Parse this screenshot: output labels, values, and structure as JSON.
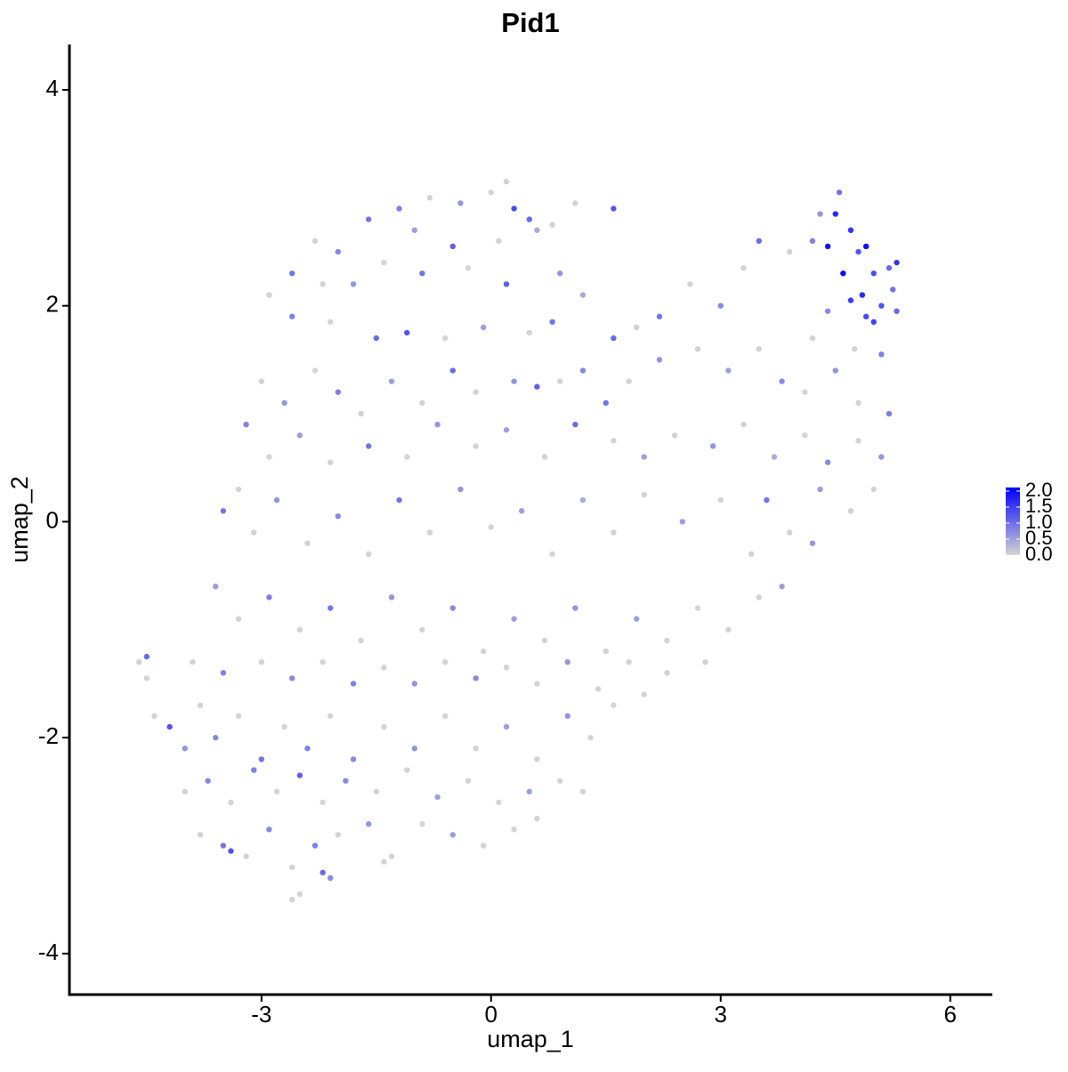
{
  "chart_data": {
    "type": "scatter",
    "title": "Pid1",
    "x_label": "umap_1",
    "y_label": "umap_2",
    "xlim": [
      -5.51,
      6.55
    ],
    "ylim": [
      -4.38,
      4.42
    ],
    "xticks": [
      -3,
      0,
      3,
      6
    ],
    "yticks": [
      -4,
      -2,
      0,
      2,
      4
    ],
    "low_color": "#d3d3d3",
    "high_color": "#0000ff",
    "color_lim": [
      0,
      2.0
    ],
    "color_ticks": [
      {
        "value": 0,
        "label": "0.0"
      },
      {
        "value": 0.5,
        "label": "0.5"
      },
      {
        "value": 1.0,
        "label": "1.0"
      },
      {
        "value": 1.5,
        "label": "1.5"
      },
      {
        "value": 2.0,
        "label": "2.0"
      }
    ],
    "x": [
      -1.2,
      -0.8,
      -0.4,
      0,
      0.2,
      0.3,
      0.5,
      0.8,
      1.1,
      1.6,
      -1.6,
      -2.0,
      -2.3,
      -1.0,
      -0.5,
      0.1,
      0.6,
      -2.6,
      -2.2,
      -1.8,
      -1.4,
      -0.9,
      -0.3,
      0.2,
      0.9,
      1.2,
      -2.9,
      -2.6,
      -2.1,
      -1.5,
      -1.1,
      -0.6,
      -0.1,
      0.5,
      0.8,
      1.6,
      1.9,
      2.2,
      2.6,
      3.0,
      3.3,
      3.5,
      3.9,
      4.2,
      4.4,
      4.5,
      4.55,
      4.7,
      4.8,
      4.9,
      5.0,
      5.2,
      5.3,
      4.6,
      4.7,
      4.85,
      5.0,
      5.1,
      5.25,
      4.9,
      4.4,
      4.2,
      5.3,
      4.75,
      5.1,
      4.3,
      -3.0,
      -2.7,
      -2.3,
      -2.0,
      -1.7,
      -1.3,
      -0.9,
      -0.5,
      -0.2,
      0.3,
      0.6,
      0.9,
      1.2,
      1.5,
      1.8,
      2.2,
      2.7,
      3.1,
      3.5,
      3.8,
      4.1,
      4.5,
      4.8,
      5.2,
      -3.2,
      -2.9,
      -2.5,
      -2.1,
      -1.6,
      -1.1,
      -0.7,
      -0.2,
      0.2,
      0.7,
      1.1,
      1.6,
      2.0,
      2.4,
      2.9,
      3.3,
      3.7,
      4.1,
      4.4,
      4.8,
      5.1,
      -3.3,
      -3.5,
      -3.1,
      -2.8,
      -2.4,
      -2.0,
      -1.6,
      -1.2,
      -0.8,
      -0.4,
      0.0,
      0.4,
      0.8,
      1.2,
      1.6,
      2.0,
      2.5,
      3.0,
      3.6,
      3.9,
      4.3,
      4.7,
      5.0,
      3.4,
      4.2,
      -3.6,
      -3.3,
      -2.9,
      -2.5,
      -2.1,
      -1.7,
      -1.3,
      -0.9,
      -0.5,
      -0.1,
      0.3,
      0.7,
      1.1,
      1.5,
      1.9,
      2.3,
      2.7,
      3.1,
      3.5,
      3.8,
      -3.9,
      -3.5,
      -3.0,
      -2.6,
      -2.2,
      -1.8,
      -1.4,
      -1.0,
      -0.6,
      -0.2,
      0.2,
      0.6,
      1.0,
      1.4,
      1.8,
      2.3,
      2.8,
      -4.6,
      -4.5,
      -4.5,
      -4.4,
      -4.2,
      -4.0,
      -3.8,
      -3.6,
      -3.3,
      -3.0,
      -2.7,
      -2.4,
      -2.1,
      -1.8,
      -1.4,
      -1.0,
      -0.6,
      -0.2,
      0.2,
      0.6,
      1.0,
      1.3,
      1.6,
      2.0,
      -4.0,
      -3.7,
      -3.4,
      -3.1,
      -2.8,
      -2.5,
      -2.2,
      -1.9,
      -1.5,
      -1.1,
      -0.7,
      -0.3,
      0.1,
      0.5,
      0.9,
      1.2,
      -3.8,
      -3.5,
      -3.2,
      -2.9,
      -2.6,
      -2.3,
      -2.0,
      -1.6,
      -1.3,
      -0.9,
      -0.5,
      -0.1,
      0.3,
      0.6,
      -2.6,
      -2.5,
      -2.2,
      -2.1,
      -1.4,
      -3.4
    ],
    "values": [
      2.9,
      3.0,
      2.95,
      3.05,
      3.15,
      2.9,
      2.8,
      2.75,
      2.95,
      2.9,
      2.8,
      2.5,
      2.6,
      2.7,
      2.55,
      2.6,
      2.7,
      2.3,
      2.2,
      2.2,
      2.4,
      2.3,
      2.35,
      2.2,
      2.3,
      2.1,
      2.1,
      1.9,
      1.85,
      1.7,
      1.75,
      1.7,
      1.8,
      1.75,
      1.85,
      1.7,
      1.8,
      1.9,
      2.2,
      2.0,
      2.35,
      2.6,
      2.5,
      2.6,
      2.55,
      2.85,
      3.05,
      2.7,
      2.5,
      2.55,
      2.3,
      2.35,
      2.4,
      2.3,
      2.05,
      2.1,
      1.85,
      2.0,
      2.15,
      1.9,
      1.95,
      1.7,
      1.95,
      1.6,
      1.55,
      2.85,
      1.3,
      1.1,
      1.4,
      1.2,
      1.0,
      1.3,
      1.1,
      1.4,
      1.2,
      1.3,
      1.25,
      1.3,
      1.4,
      1.1,
      1.3,
      1.5,
      1.6,
      1.4,
      1.6,
      1.3,
      1.2,
      1.4,
      1.1,
      1.0,
      0.9,
      0.6,
      0.8,
      0.55,
      0.7,
      0.6,
      0.9,
      0.7,
      0.85,
      0.6,
      0.9,
      0.75,
      0.6,
      0.8,
      0.7,
      0.9,
      0.6,
      0.8,
      0.55,
      0.75,
      0.6,
      0.3,
      0.1,
      -0.1,
      0.2,
      -0.2,
      0.05,
      -0.3,
      0.2,
      -0.1,
      0.3,
      -0.05,
      0.1,
      -0.3,
      0.2,
      -0.1,
      0.25,
      0.0,
      0.2,
      0.2,
      -0.1,
      0.3,
      0.1,
      0.3,
      -0.3,
      -0.2,
      -0.6,
      -0.9,
      -0.7,
      -1.0,
      -0.8,
      -1.1,
      -0.7,
      -1.0,
      -0.8,
      -1.2,
      -0.9,
      -1.1,
      -0.8,
      -1.2,
      -0.9,
      -1.1,
      -0.8,
      -1.0,
      -0.7,
      -0.6,
      -1.3,
      -1.4,
      -1.3,
      -1.45,
      -1.3,
      -1.5,
      -1.35,
      -1.5,
      -1.3,
      -1.45,
      -1.35,
      -1.5,
      -1.3,
      -1.55,
      -1.3,
      -1.4,
      -1.3,
      -1.3,
      -1.25,
      -1.45,
      -1.8,
      -1.9,
      -2.1,
      -1.7,
      -2.0,
      -1.8,
      -2.2,
      -1.9,
      -2.1,
      -1.8,
      -2.2,
      -1.9,
      -2.1,
      -1.8,
      -2.1,
      -1.9,
      -2.2,
      -1.8,
      -2.0,
      -1.7,
      -1.6,
      -2.5,
      -2.4,
      -2.6,
      -2.3,
      -2.5,
      -2.35,
      -2.6,
      -2.4,
      -2.5,
      -2.3,
      -2.55,
      -2.4,
      -2.6,
      -2.5,
      -2.4,
      -2.5,
      -2.9,
      -3.0,
      -3.1,
      -2.85,
      -3.2,
      -3.0,
      -2.9,
      -2.8,
      -3.1,
      -2.8,
      -2.9,
      -3.0,
      -2.85,
      -2.75,
      -3.5,
      -3.45,
      -3.25,
      -3.3,
      -3.15,
      -3.05
    ],
    "expression": [
      0.8,
      0,
      0.6,
      0,
      0,
      1.3,
      1.0,
      0,
      0,
      1.2,
      0.9,
      0.7,
      0,
      0.5,
      1.1,
      0,
      0.4,
      0.9,
      0,
      0.6,
      0,
      0.9,
      0,
      1.1,
      0.6,
      0.4,
      0,
      0.8,
      0,
      1.0,
      1.2,
      0,
      0.5,
      0,
      0.9,
      1.0,
      0,
      0.9,
      0,
      0.7,
      0,
      1.0,
      0,
      0.8,
      1.8,
      1.6,
      0.9,
      1.5,
      1.2,
      1.9,
      1.3,
      1.0,
      1.5,
      1.9,
      1.4,
      1.6,
      1.4,
      1.2,
      0.9,
      1.3,
      0.7,
      0,
      1.0,
      0,
      0.8,
      0.6,
      0,
      0.6,
      0,
      0.8,
      0,
      0.5,
      0,
      1.0,
      0,
      0.6,
      1.1,
      0,
      0.7,
      0.9,
      0,
      0.6,
      0,
      0.5,
      0,
      0.7,
      0,
      0.6,
      0,
      0.8,
      0.8,
      0,
      0.5,
      0,
      0.9,
      0,
      0.6,
      0,
      0.5,
      0,
      1.0,
      0,
      0.5,
      0,
      0.6,
      0,
      0.4,
      0,
      0.7,
      0,
      0.6,
      0,
      0.9,
      0,
      0.6,
      0,
      0.7,
      0,
      0.9,
      0,
      0.6,
      0,
      0.5,
      0,
      0.4,
      0,
      0,
      0.5,
      0,
      0.9,
      0,
      0.5,
      0,
      0,
      0,
      0.6,
      0.5,
      0,
      0.8,
      0,
      0.9,
      0,
      0.6,
      0,
      0.7,
      0,
      0.5,
      0,
      0.6,
      0,
      0.5,
      0,
      0,
      0,
      0,
      0.5,
      0,
      0.8,
      0,
      0.7,
      0,
      0.8,
      0,
      0.6,
      0,
      0.7,
      0,
      0,
      0.6,
      0,
      0,
      0,
      0,
      0,
      1.0,
      0,
      0,
      1.2,
      0.6,
      0,
      0.7,
      0,
      0.9,
      0,
      0.8,
      0,
      0.7,
      0,
      0.6,
      0,
      0,
      0.5,
      0,
      0.6,
      0,
      0,
      0,
      0,
      0.7,
      0,
      0.8,
      0,
      1.1,
      0,
      0.7,
      0,
      0,
      0.5,
      0,
      0,
      0.5,
      0,
      0,
      0,
      0.9,
      0,
      0.7,
      0,
      0.8,
      0,
      0.6,
      0,
      0,
      0.5,
      0,
      0,
      0,
      0,
      0,
      1.0,
      0.7,
      0,
      1.2
    ]
  }
}
